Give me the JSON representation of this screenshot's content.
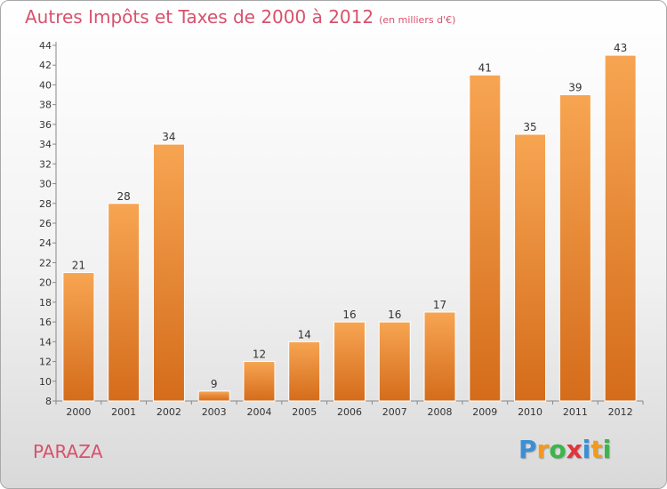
{
  "title": "Autres Impôts et Taxes de 2000 à 2012",
  "subtitle": "(en milliers d'€)",
  "commune": "PARAZA",
  "logo": {
    "letters": [
      {
        "ch": "P",
        "color": "#3a8fd6"
      },
      {
        "ch": "r",
        "color": "#f39a1e"
      },
      {
        "ch": "o",
        "color": "#3cb54a"
      },
      {
        "ch": "x",
        "color": "#e2343c"
      },
      {
        "ch": "i",
        "color": "#3a8fd6"
      },
      {
        "ch": "t",
        "color": "#f39a1e"
      },
      {
        "ch": "i",
        "color": "#3cb54a"
      }
    ]
  },
  "colors": {
    "title": "#d8516c",
    "bar_light": "#f7a552",
    "bar_dark": "#d46c1b"
  },
  "chart_data": {
    "type": "bar",
    "title": "Autres Impôts et Taxes de 2000 à 2012",
    "categories": [
      "2000",
      "2001",
      "2002",
      "2003",
      "2004",
      "2005",
      "2006",
      "2007",
      "2008",
      "2009",
      "2010",
      "2011",
      "2012"
    ],
    "values": [
      21,
      28,
      34,
      9,
      12,
      14,
      16,
      16,
      17,
      41,
      35,
      39,
      43
    ],
    "yticks": [
      8,
      10,
      12,
      14,
      16,
      18,
      20,
      22,
      24,
      26,
      28,
      30,
      32,
      34,
      36,
      38,
      40,
      42,
      44
    ],
    "ylim": [
      8,
      44
    ],
    "xlabel": "",
    "ylabel": "",
    "grid": false,
    "legend": "none"
  }
}
